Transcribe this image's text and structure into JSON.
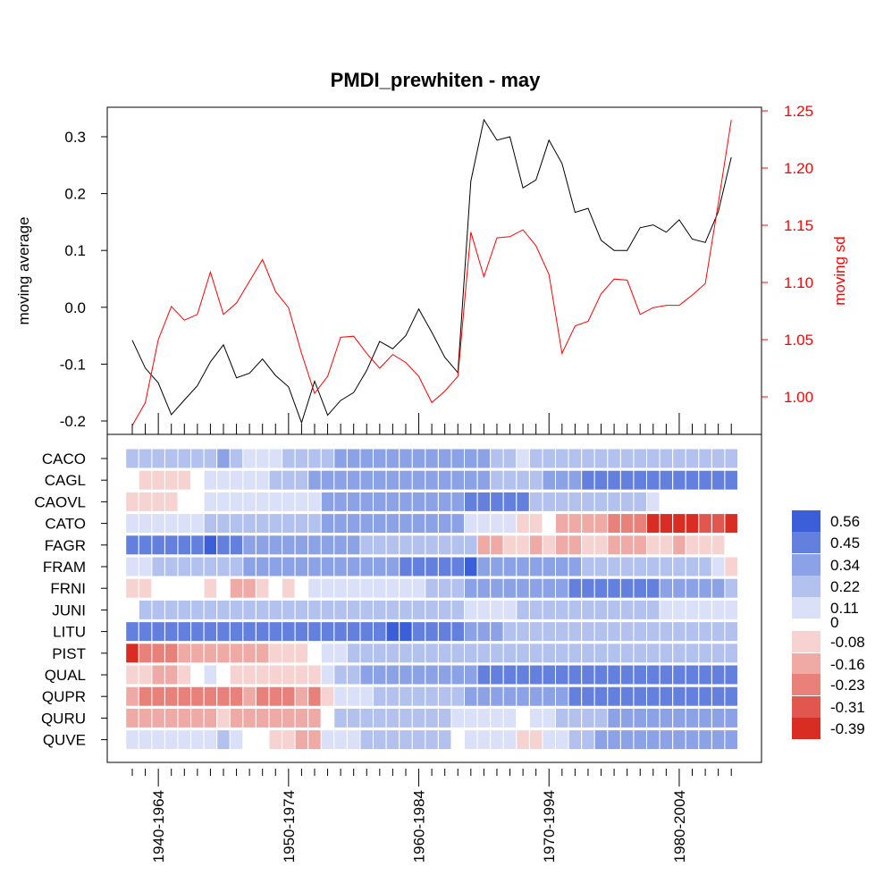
{
  "chart_data": [
    {
      "type": "line",
      "title": "PMDI_prewhiten - may",
      "ylabel": "moving average",
      "y2label": "moving sd",
      "x_index": [
        1,
        2,
        3,
        4,
        5,
        6,
        7,
        8,
        9,
        10,
        11,
        12,
        13,
        14,
        15,
        16,
        17,
        18,
        19,
        20,
        21,
        22,
        23,
        24,
        25,
        26,
        27,
        28,
        29,
        30,
        31,
        32,
        33,
        34,
        35,
        36,
        37,
        38,
        39,
        40,
        41,
        42,
        43,
        44,
        45,
        46,
        47
      ],
      "ylim": [
        -0.2,
        0.33
      ],
      "y2lim": [
        0.975,
        1.245
      ],
      "yticks": [
        -0.2,
        -0.1,
        0.0,
        0.1,
        0.2,
        0.3
      ],
      "ytick_labels": [
        "-0.2",
        "-0.1",
        "0.0",
        "0.1",
        "0.2",
        "0.3"
      ],
      "y2ticks": [
        1.0,
        1.05,
        1.1,
        1.15,
        1.2,
        1.25
      ],
      "y2tick_labels": [
        "1.00",
        "1.05",
        "1.10",
        "1.15",
        "1.20",
        "1.25"
      ],
      "series": [
        {
          "axis": "left",
          "color": "#000000",
          "values": [
            -0.058,
            -0.107,
            -0.133,
            -0.189,
            -0.163,
            -0.138,
            -0.096,
            -0.066,
            -0.124,
            -0.116,
            -0.091,
            -0.12,
            -0.14,
            -0.203,
            -0.13,
            -0.19,
            -0.164,
            -0.15,
            -0.111,
            -0.06,
            -0.073,
            -0.05,
            -0.003,
            -0.044,
            -0.088,
            -0.115,
            0.222,
            0.33,
            0.294,
            0.3,
            0.21,
            0.224,
            0.294,
            0.253,
            0.167,
            0.174,
            0.118,
            0.1,
            0.1,
            0.14,
            0.145,
            0.132,
            0.154,
            0.12,
            0.114,
            0.168,
            0.264
          ]
        },
        {
          "axis": "right",
          "color": "#ff0000",
          "values": [
            0.975,
            0.995,
            1.05,
            1.079,
            1.067,
            1.072,
            1.109,
            1.072,
            1.082,
            1.101,
            1.12,
            1.092,
            1.078,
            1.038,
            1.003,
            1.018,
            1.052,
            1.053,
            1.038,
            1.025,
            1.037,
            1.03,
            1.018,
            0.995,
            1.005,
            1.018,
            1.144,
            1.105,
            1.139,
            1.14,
            1.146,
            1.132,
            1.107,
            1.038,
            1.062,
            1.066,
            1.09,
            1.103,
            1.102,
            1.072,
            1.078,
            1.08,
            1.08,
            1.089,
            1.099,
            1.169,
            1.242
          ]
        }
      ]
    },
    {
      "type": "heatmap",
      "rows": [
        "CACO",
        "CAGL",
        "CAOVL",
        "CATO",
        "FAGR",
        "FRAM",
        "FRNI",
        "JUNI",
        "LITU",
        "PIST",
        "QUAL",
        "QUPR",
        "QURU",
        "QUVE"
      ],
      "x_labels": [
        "1940-1964",
        "1950-1974",
        "1960-1984",
        "1970-1994",
        "1980-2004"
      ],
      "x_label_positions": [
        3,
        13,
        23,
        33,
        43
      ],
      "n_cols": 47,
      "legend": {
        "labels": [
          "0.56",
          "0.45",
          "0.34",
          "0.22",
          "0.11",
          "0",
          "-0.08",
          "-0.16",
          "-0.23",
          "-0.31",
          "-0.39"
        ],
        "colors": [
          "#3b5fd9",
          "#6480df",
          "#8ca2e6",
          "#b3c1ef",
          "#d9e0f7",
          "#ffffff",
          "#f6d3d1",
          "#efaaa6",
          "#e8817a",
          "#e1574f",
          "#d92d24"
        ]
      },
      "values": [
        [
          0.2,
          0.2,
          0.2,
          0.2,
          0.2,
          0.2,
          0.2,
          0.3,
          0.2,
          0.1,
          0.1,
          0.1,
          0.2,
          0.2,
          0.2,
          0.2,
          0.3,
          0.3,
          0.3,
          0.3,
          0.3,
          0.3,
          0.3,
          0.3,
          0.3,
          0.3,
          0.3,
          0.3,
          0.2,
          0.2,
          0.1,
          0.2,
          0.2,
          0.2,
          0.2,
          0.2,
          0.2,
          0.2,
          0.2,
          0.2,
          0.2,
          0.2,
          0.2,
          0.2,
          0.2,
          0.2,
          0.2
        ],
        [
          0.0,
          -0.04,
          -0.08,
          -0.08,
          -0.04,
          0.0,
          0.1,
          0.1,
          0.1,
          0.1,
          0.1,
          0.2,
          0.2,
          0.2,
          0.3,
          0.3,
          0.3,
          0.3,
          0.3,
          0.3,
          0.3,
          0.3,
          0.3,
          0.3,
          0.3,
          0.3,
          0.3,
          0.3,
          0.2,
          0.2,
          0.2,
          0.2,
          0.3,
          0.3,
          0.3,
          0.4,
          0.4,
          0.4,
          0.4,
          0.4,
          0.4,
          0.4,
          0.4,
          0.4,
          0.4,
          0.4,
          0.4
        ],
        [
          -0.08,
          -0.08,
          -0.08,
          -0.08,
          0.0,
          0.0,
          0.1,
          0.1,
          0.1,
          0.1,
          0.1,
          0.1,
          0.1,
          0.1,
          0.1,
          0.3,
          0.3,
          0.3,
          0.3,
          0.3,
          0.3,
          0.3,
          0.3,
          0.3,
          0.3,
          0.3,
          0.4,
          0.4,
          0.4,
          0.4,
          0.4,
          0.2,
          0.2,
          0.2,
          0.2,
          0.2,
          0.2,
          0.2,
          0.2,
          0.2,
          0.1,
          0.0,
          0.0,
          0.0,
          0.0,
          0.0,
          0.0
        ],
        [
          0.1,
          0.1,
          0.1,
          0.1,
          0.1,
          0.1,
          0.2,
          0.2,
          0.2,
          0.2,
          0.2,
          0.2,
          0.2,
          0.2,
          0.2,
          0.3,
          0.3,
          0.3,
          0.3,
          0.3,
          0.3,
          0.3,
          0.3,
          0.3,
          0.3,
          0.3,
          0.1,
          0.1,
          0.1,
          0.1,
          -0.08,
          -0.08,
          0.0,
          -0.16,
          -0.16,
          -0.16,
          -0.16,
          -0.23,
          -0.23,
          -0.23,
          -0.39,
          -0.39,
          -0.39,
          -0.39,
          -0.31,
          -0.31,
          -0.39
        ],
        [
          0.45,
          0.45,
          0.5,
          0.5,
          0.5,
          0.5,
          0.56,
          0.45,
          0.45,
          0.3,
          0.3,
          0.3,
          0.3,
          0.3,
          0.3,
          0.3,
          0.3,
          0.3,
          0.2,
          0.2,
          0.2,
          0.2,
          0.2,
          0.2,
          0.2,
          0.2,
          0.2,
          -0.16,
          -0.16,
          -0.1,
          -0.1,
          -0.16,
          -0.1,
          -0.16,
          -0.16,
          -0.08,
          -0.08,
          -0.16,
          -0.16,
          -0.16,
          -0.1,
          -0.1,
          -0.16,
          -0.1,
          -0.1,
          -0.1,
          0.0
        ],
        [
          0.1,
          0.1,
          0.2,
          0.2,
          0.2,
          0.2,
          0.2,
          0.2,
          0.2,
          0.34,
          0.34,
          0.34,
          0.34,
          0.34,
          0.34,
          0.34,
          0.34,
          0.34,
          0.34,
          0.34,
          0.34,
          0.4,
          0.4,
          0.4,
          0.45,
          0.45,
          0.56,
          0.3,
          0.3,
          0.3,
          0.3,
          0.3,
          0.3,
          0.3,
          0.3,
          0.2,
          0.2,
          0.2,
          0.2,
          0.2,
          0.2,
          0.2,
          0.2,
          0.2,
          0.2,
          0.1,
          -0.08
        ],
        [
          -0.08,
          -0.08,
          0.0,
          0.0,
          0.0,
          0.0,
          -0.08,
          0.0,
          -0.16,
          -0.16,
          -0.08,
          0.0,
          -0.08,
          0.0,
          0.1,
          0.1,
          0.1,
          0.1,
          0.1,
          0.1,
          0.1,
          0.1,
          0.1,
          0.2,
          0.2,
          0.2,
          0.3,
          0.3,
          0.3,
          0.3,
          0.3,
          0.3,
          0.3,
          0.3,
          0.45,
          0.45,
          0.45,
          0.45,
          0.45,
          0.45,
          0.45,
          0.34,
          0.34,
          0.3,
          0.3,
          0.3,
          0.2
        ],
        [
          0.0,
          0.2,
          0.2,
          0.2,
          0.2,
          0.2,
          0.2,
          0.2,
          0.2,
          0.2,
          0.2,
          0.2,
          0.2,
          0.2,
          0.2,
          0.2,
          0.2,
          0.2,
          0.2,
          0.2,
          0.2,
          0.2,
          0.2,
          0.2,
          0.2,
          0.2,
          0.1,
          0.1,
          0.1,
          0.1,
          0.2,
          0.2,
          0.2,
          0.2,
          0.2,
          0.2,
          0.2,
          0.2,
          0.2,
          0.2,
          0.2,
          0.1,
          0.1,
          0.1,
          0.1,
          0.1,
          0.1
        ],
        [
          0.4,
          0.4,
          0.4,
          0.4,
          0.4,
          0.4,
          0.4,
          0.4,
          0.4,
          0.4,
          0.4,
          0.4,
          0.4,
          0.4,
          0.45,
          0.45,
          0.45,
          0.45,
          0.5,
          0.5,
          0.56,
          0.56,
          0.5,
          0.5,
          0.45,
          0.45,
          0.3,
          0.3,
          0.3,
          0.2,
          0.2,
          0.2,
          0.2,
          0.2,
          0.2,
          0.2,
          0.2,
          0.2,
          0.2,
          0.2,
          0.2,
          0.2,
          0.2,
          0.2,
          0.2,
          0.2,
          0.2
        ],
        [
          -0.39,
          -0.23,
          -0.23,
          -0.23,
          -0.16,
          -0.16,
          -0.16,
          -0.16,
          -0.16,
          -0.16,
          -0.16,
          -0.1,
          -0.1,
          -0.1,
          0.0,
          0.1,
          0.1,
          0.2,
          0.2,
          0.2,
          0.2,
          0.2,
          0.2,
          0.2,
          0.2,
          0.2,
          0.2,
          0.2,
          0.2,
          0.2,
          0.2,
          0.2,
          0.2,
          0.2,
          0.2,
          0.2,
          0.2,
          0.2,
          0.2,
          0.2,
          0.2,
          0.2,
          0.2,
          0.2,
          0.2,
          0.2,
          0.2
        ],
        [
          -0.08,
          -0.08,
          -0.16,
          -0.16,
          -0.08,
          0.0,
          0.1,
          0.0,
          -0.08,
          -0.08,
          -0.08,
          -0.08,
          -0.08,
          -0.08,
          -0.08,
          0.1,
          0.2,
          0.2,
          0.3,
          0.3,
          0.3,
          0.3,
          0.3,
          0.3,
          0.3,
          0.3,
          0.34,
          0.4,
          0.4,
          0.4,
          0.4,
          0.4,
          0.4,
          0.4,
          0.4,
          0.45,
          0.45,
          0.45,
          0.45,
          0.4,
          0.4,
          0.4,
          0.4,
          0.4,
          0.4,
          0.4,
          0.4
        ],
        [
          -0.16,
          -0.23,
          -0.23,
          -0.23,
          -0.23,
          -0.23,
          -0.23,
          -0.23,
          -0.23,
          -0.16,
          -0.23,
          -0.23,
          -0.23,
          -0.16,
          -0.23,
          -0.08,
          0.1,
          0.1,
          0.1,
          0.2,
          0.2,
          0.2,
          0.2,
          0.2,
          0.2,
          0.2,
          0.3,
          0.3,
          0.3,
          0.3,
          0.3,
          0.34,
          0.34,
          0.34,
          0.4,
          0.4,
          0.4,
          0.4,
          0.45,
          0.45,
          0.45,
          0.45,
          0.45,
          0.45,
          0.45,
          0.45,
          0.5
        ],
        [
          -0.16,
          -0.16,
          -0.16,
          -0.16,
          -0.16,
          -0.16,
          -0.16,
          -0.08,
          -0.16,
          -0.16,
          -0.16,
          -0.16,
          -0.16,
          -0.16,
          -0.16,
          0.0,
          0.2,
          0.2,
          0.2,
          0.2,
          0.2,
          0.2,
          0.2,
          0.2,
          0.2,
          0.1,
          0.1,
          0.1,
          0.1,
          0.1,
          0.0,
          0.1,
          0.1,
          0.2,
          0.2,
          0.2,
          0.2,
          0.3,
          0.3,
          0.3,
          0.3,
          0.3,
          0.3,
          0.3,
          0.3,
          0.3,
          0.3
        ],
        [
          0.1,
          0.1,
          0.1,
          0.1,
          0.1,
          0.1,
          0.1,
          0.2,
          0.1,
          0.0,
          0.0,
          -0.08,
          -0.08,
          -0.16,
          -0.16,
          0.1,
          0.1,
          0.1,
          0.2,
          0.2,
          0.2,
          0.2,
          0.2,
          0.2,
          0.2,
          0.0,
          0.1,
          0.1,
          0.1,
          0.1,
          -0.08,
          -0.08,
          0.1,
          0.1,
          0.2,
          0.2,
          0.3,
          0.3,
          0.3,
          0.3,
          0.3,
          0.3,
          0.3,
          0.3,
          0.3,
          0.3,
          0.3
        ]
      ]
    }
  ]
}
